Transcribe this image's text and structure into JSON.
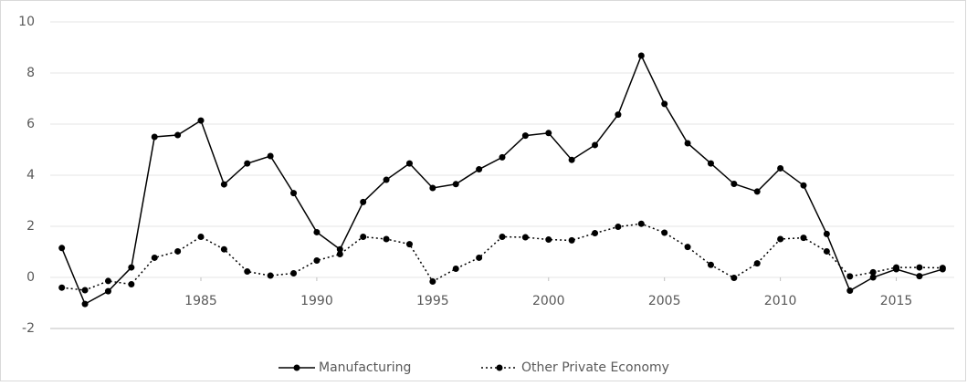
{
  "chart_data": {
    "type": "line",
    "x": [
      1979,
      1980,
      1981,
      1982,
      1983,
      1984,
      1985,
      1986,
      1987,
      1988,
      1989,
      1990,
      1991,
      1992,
      1993,
      1994,
      1995,
      1996,
      1997,
      1998,
      1999,
      2000,
      2001,
      2002,
      2003,
      2004,
      2005,
      2006,
      2007,
      2008,
      2009,
      2010,
      2011,
      2012,
      2013,
      2014,
      2015,
      2016,
      2017
    ],
    "series": [
      {
        "name": "Manufacturing",
        "color": "#000000",
        "dash": "solid",
        "values": [
          1.15,
          -1.04,
          -0.54,
          0.39,
          5.5,
          5.57,
          6.14,
          3.64,
          4.46,
          4.75,
          3.3,
          1.77,
          1.1,
          2.95,
          3.82,
          4.46,
          3.5,
          3.65,
          4.23,
          4.7,
          5.55,
          5.65,
          4.6,
          5.18,
          6.37,
          8.68,
          6.79,
          5.25,
          4.46,
          3.66,
          3.36,
          4.27,
          3.6,
          1.7,
          -0.52,
          0.0,
          0.32,
          0.05,
          0.32
        ]
      },
      {
        "name": "Other Private Economy",
        "color": "#000000",
        "dash": "dotted",
        "values": [
          -0.4,
          -0.5,
          -0.14,
          -0.27,
          0.77,
          1.02,
          1.59,
          1.1,
          0.23,
          0.07,
          0.16,
          0.66,
          0.91,
          1.59,
          1.5,
          1.3,
          -0.16,
          0.34,
          0.77,
          1.59,
          1.57,
          1.48,
          1.45,
          1.73,
          1.98,
          2.1,
          1.75,
          1.19,
          0.49,
          -0.02,
          0.55,
          1.5,
          1.55,
          1.02,
          0.04,
          0.2,
          0.39,
          0.39,
          0.37
        ]
      }
    ],
    "xlim": [
      1978.5,
      2017.5
    ],
    "xticks": [
      1985,
      1990,
      1995,
      2000,
      2005,
      2010,
      2015
    ],
    "ylim": [
      -2,
      10
    ],
    "yticks": [
      -2,
      0,
      2,
      4,
      6,
      8,
      10
    ],
    "grid": true,
    "legend": "bottom"
  }
}
